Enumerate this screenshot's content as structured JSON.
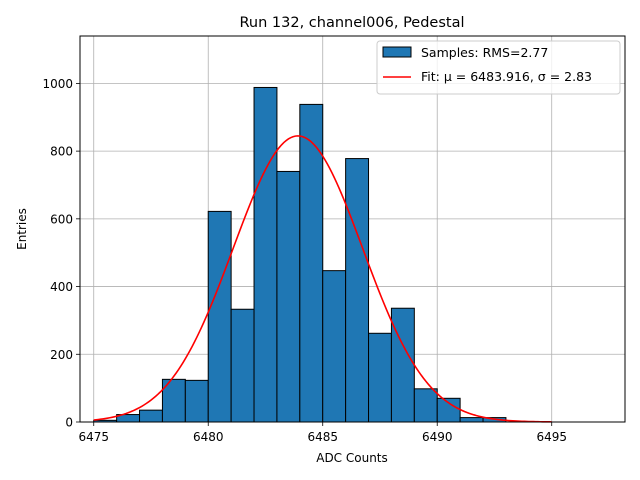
{
  "chart_data": {
    "type": "bar",
    "title": "Run 132, channel006, Pedestal",
    "xlabel": "ADC Counts",
    "ylabel": "Entries",
    "xlim": [
      6474.4,
      6498.2
    ],
    "ylim": [
      0,
      1140
    ],
    "xticks": [
      6475,
      6480,
      6485,
      6490,
      6495
    ],
    "yticks": [
      0,
      200,
      400,
      600,
      800,
      1000
    ],
    "grid": true,
    "legend_position": "top-right",
    "bin_width": 1,
    "bins": [
      {
        "left": 6475,
        "count": 5
      },
      {
        "left": 6476,
        "count": 22
      },
      {
        "left": 6477,
        "count": 35
      },
      {
        "left": 6478,
        "count": 126
      },
      {
        "left": 6479,
        "count": 123
      },
      {
        "left": 6480,
        "count": 622
      },
      {
        "left": 6481,
        "count": 333
      },
      {
        "left": 6482,
        "count": 988
      },
      {
        "left": 6483,
        "count": 740
      },
      {
        "left": 6484,
        "count": 938
      },
      {
        "left": 6485,
        "count": 447
      },
      {
        "left": 6486,
        "count": 778
      },
      {
        "left": 6487,
        "count": 262
      },
      {
        "left": 6488,
        "count": 336
      },
      {
        "left": 6489,
        "count": 98
      },
      {
        "left": 6490,
        "count": 70
      },
      {
        "left": 6491,
        "count": 13
      },
      {
        "left": 6492,
        "count": 13
      }
    ],
    "fit": {
      "mu": 6483.916,
      "sigma": 2.83,
      "amplitude": 845,
      "x_range": [
        6475,
        6495
      ]
    },
    "legend": [
      {
        "label": "Samples: RMS=2.77",
        "color": "#1f77b4"
      },
      {
        "label": "Fit: μ = 6483.916, σ = 2.83",
        "color": "#ff0000"
      }
    ]
  }
}
